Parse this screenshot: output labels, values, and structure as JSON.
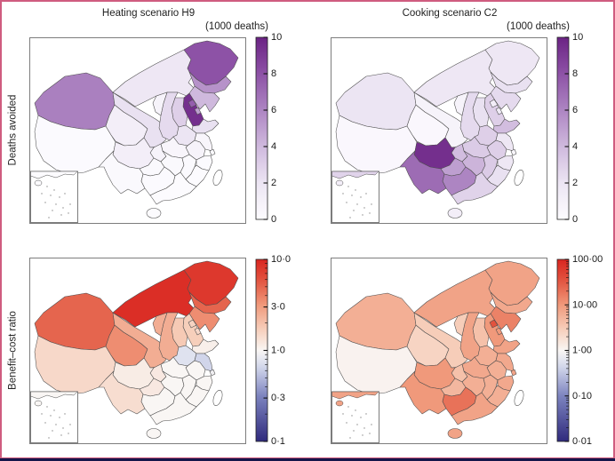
{
  "figure": {
    "border_color": "#cf5c7f",
    "bottom_rule_color": "#15154a",
    "background": "#ffffff",
    "panel_frame_color": "#7d7d7d"
  },
  "columns": [
    {
      "title": "Heating scenario H9"
    },
    {
      "title": "Cooking scenario C2"
    }
  ],
  "rows": [
    {
      "label": "Deaths avoided"
    },
    {
      "label": "Benefit–cost ratio"
    }
  ],
  "chart_data": [
    {
      "type": "choropleth",
      "region": "China provinces",
      "title": "Heating scenario H9",
      "row_label": "Deaths avoided",
      "colorbar": {
        "label": "(1000 deaths)",
        "scale": "linear",
        "domain": [
          0,
          10
        ],
        "ticks": [
          {
            "value": 0,
            "label": "0"
          },
          {
            "value": 2,
            "label": "2"
          },
          {
            "value": 4,
            "label": "4"
          },
          {
            "value": 6,
            "label": "6"
          },
          {
            "value": 8,
            "label": "8"
          },
          {
            "value": 10,
            "label": "10"
          }
        ],
        "minor_ticks": [],
        "palette": "purples"
      },
      "values": {
        "Xinjiang": 6.2,
        "Tibet": 0.2,
        "Qinghai": 1.2,
        "Gansu": 2.2,
        "Inner Mongolia": 1.8,
        "Heilongjiang": 8,
        "Jilin": 5.5,
        "Liaoning": 4,
        "Beijing": 7.5,
        "Tianjin": 5,
        "Hebei": 9.5,
        "Shandong": 2.2,
        "Shanxi": 3,
        "Shaanxi": 2.5,
        "Ningxia": 0.8,
        "Henan": 2,
        "Jiangsu": 0.6,
        "Anhui": 0.8,
        "Shanghai": 0.2,
        "Hubei": 0.6,
        "Chongqing": 0.8,
        "Sichuan": 1.2,
        "Guizhou": 0.3,
        "Yunnan": 0.3,
        "Guangxi": 0.2,
        "Hunan": 0.3,
        "Jiangxi": 0.2,
        "Zhejiang": 0.2,
        "Fujian": 0.1,
        "Guangdong": 0.1,
        "Hainan": 0.1,
        "Taiwan": null
      }
    },
    {
      "type": "choropleth",
      "region": "China provinces",
      "title": "Cooking scenario C2",
      "row_label": "Deaths avoided",
      "colorbar": {
        "label": "(1000 deaths)",
        "scale": "linear",
        "domain": [
          0,
          10
        ],
        "ticks": [
          {
            "value": 0,
            "label": "0"
          },
          {
            "value": 2,
            "label": "2"
          },
          {
            "value": 4,
            "label": "4"
          },
          {
            "value": 6,
            "label": "6"
          },
          {
            "value": 8,
            "label": "8"
          },
          {
            "value": 10,
            "label": "10"
          }
        ],
        "minor_ticks": [],
        "palette": "purples"
      },
      "values": {
        "Xinjiang": 2,
        "Tibet": 0.4,
        "Qinghai": 0.4,
        "Gansu": 0.8,
        "Inner Mongolia": 1.8,
        "Heilongjiang": 1.8,
        "Jilin": 2.2,
        "Liaoning": 2.5,
        "Beijing": 1.2,
        "Tianjin": 1.5,
        "Hebei": 3,
        "Shandong": 3.8,
        "Shanxi": 2.2,
        "Shaanxi": 2.5,
        "Ningxia": 0.8,
        "Henan": 3,
        "Jiangsu": 1.8,
        "Anhui": 3,
        "Shanghai": 0.5,
        "Hubei": 3.2,
        "Chongqing": 3.8,
        "Sichuan": 9.5,
        "Guizhou": 5,
        "Yunnan": 7,
        "Guangxi": 6,
        "Hunan": 4.2,
        "Jiangxi": 3.2,
        "Zhejiang": 1.8,
        "Fujian": 2.2,
        "Guangdong": 2.8,
        "Hainan": 1.2,
        "Taiwan": null
      }
    },
    {
      "type": "choropleth",
      "region": "China provinces",
      "title": "Heating scenario H9",
      "row_label": "Benefit–cost ratio",
      "colorbar": {
        "label": "",
        "scale": "log",
        "domain": [
          0.1,
          10
        ],
        "ticks": [
          {
            "value": 10,
            "label": "10·0"
          },
          {
            "value": 3,
            "label": "3·0"
          },
          {
            "value": 1,
            "label": "1·0"
          },
          {
            "value": 0.3,
            "label": "0·3"
          },
          {
            "value": 0.1,
            "label": "0·1"
          }
        ],
        "minor_ticks": [
          0.2,
          0.4,
          0.5,
          0.6,
          0.7,
          0.8,
          0.9,
          2,
          4,
          5,
          6,
          7,
          8,
          9
        ],
        "palette": "red-blue-diverging"
      },
      "values": {
        "Xinjiang": 5,
        "Tibet": 1.5,
        "Qinghai": 3.5,
        "Gansu": 2.5,
        "Inner Mongolia": 9,
        "Heilongjiang": 8,
        "Jilin": 5,
        "Liaoning": 3.5,
        "Beijing": 1.6,
        "Tianjin": 1.5,
        "Hebei": 1.7,
        "Shandong": 1.1,
        "Shanxi": 1.8,
        "Shaanxi": 2.5,
        "Ningxia": 2.5,
        "Henan": 0.75,
        "Jiangsu": 0.65,
        "Anhui": 1.0,
        "Shanghai": 0.9,
        "Hubei": 1.0,
        "Chongqing": 1.2,
        "Sichuan": 1.15,
        "Guizhou": 1.2,
        "Yunnan": 1.4,
        "Guangxi": 1.0,
        "Hunan": 1.0,
        "Jiangxi": 1.0,
        "Zhejiang": 1.0,
        "Fujian": 1.0,
        "Guangdong": 1.0,
        "Hainan": 1.0,
        "Taiwan": null
      }
    },
    {
      "type": "choropleth",
      "region": "China provinces",
      "title": "Cooking scenario C2",
      "row_label": "Benefit–cost ratio",
      "colorbar": {
        "label": "",
        "scale": "log",
        "domain": [
          0.01,
          100
        ],
        "ticks": [
          {
            "value": 100,
            "label": "100·00"
          },
          {
            "value": 10,
            "label": "10·00"
          },
          {
            "value": 1,
            "label": "1·00"
          },
          {
            "value": 0.1,
            "label": "0·10"
          },
          {
            "value": 0.01,
            "label": "0·01"
          }
        ],
        "minor_ticks": [
          0.02,
          0.03,
          0.04,
          0.05,
          0.06,
          0.07,
          0.08,
          0.09,
          0.2,
          0.3,
          0.4,
          0.5,
          0.6,
          0.7,
          0.8,
          0.9,
          2,
          3,
          4,
          5,
          6,
          7,
          8,
          9,
          20,
          30,
          40,
          50,
          60,
          70,
          80,
          90
        ],
        "palette": "red-blue-diverging"
      },
      "values": {
        "Xinjiang": 6,
        "Tibet": 1.1,
        "Qinghai": 2.5,
        "Gansu": 3,
        "Inner Mongolia": 8,
        "Heilongjiang": 8,
        "Jilin": 7,
        "Liaoning": 15,
        "Beijing": 35,
        "Tianjin": 10,
        "Hebei": 10,
        "Shandong": 8,
        "Shanxi": 4,
        "Shaanxi": 8,
        "Ningxia": 3,
        "Henan": 6,
        "Jiangsu": 7,
        "Anhui": 6,
        "Shanghai": 8,
        "Hubei": 7,
        "Chongqing": 4,
        "Sichuan": 10,
        "Guizhou": 5,
        "Yunnan": 10,
        "Guangxi": 20,
        "Hunan": 6,
        "Jiangxi": 6,
        "Zhejiang": 7,
        "Fujian": 6,
        "Guangdong": 8,
        "Hainan": 8,
        "Taiwan": null
      }
    }
  ]
}
